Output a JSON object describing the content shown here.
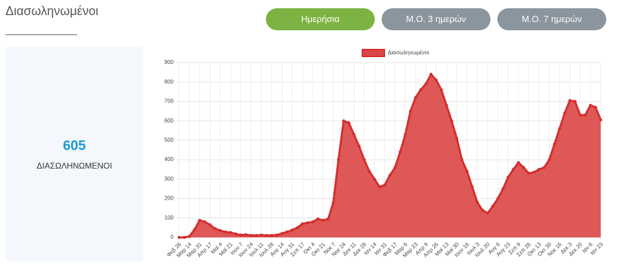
{
  "header": {
    "title": "Διασωληνωμένοι"
  },
  "buttons": [
    "Ημερήσια",
    "Μ.Ο. 3 ημερών",
    "Μ.Ο. 7 ημερών"
  ],
  "card": {
    "value": "605",
    "label": "ΔΙΑΣΩΛΗΝΩΜΕΝΟΙ"
  },
  "chart_data": {
    "type": "line",
    "area": true,
    "grid": true,
    "legend": "top",
    "categories": [
      "Φεβ 26",
      null,
      "Μαρ 14",
      null,
      "Μαρ 31",
      null,
      "Απρ 17",
      null,
      "Μαϊ 4",
      null,
      "Μαϊ 21",
      null,
      "Ιουν 7",
      null,
      "Ιουν 24",
      null,
      "Ιουλ 11",
      null,
      "Ιουλ 28",
      null,
      "Αυγ 14",
      null,
      "Αυγ 31",
      null,
      "Σεπ 17",
      null,
      "Οκτ 4",
      null,
      "Οκτ 21",
      null,
      "Νοε 7",
      null,
      "Νοε 24",
      null,
      "Δεκ 11",
      null,
      "Δεκ 28",
      null,
      "Ιαν 14",
      null,
      "Ιαν 31",
      null,
      "Φεβ 17",
      null,
      "Μαρ 6",
      null,
      "Μαρ 23",
      null,
      "Απρ 9",
      null,
      "Απρ 26",
      null,
      "Μαϊ 13",
      null,
      "Μαϊ 30",
      null,
      "Ιουν 16",
      null,
      "Ιουλ 3",
      null,
      "Ιουλ 20",
      null,
      "Αυγ 6",
      null,
      "Αυγ 23",
      null,
      "Σεπ 9",
      null,
      "Σεπ 26",
      null,
      "Οκτ 13",
      null,
      "Οκτ 30",
      null,
      "Νοε 16",
      null,
      "Δεκ 3",
      null,
      "Δεκ 20",
      null,
      "Ιαν 6",
      null,
      "Ιαν 23"
    ],
    "series": [
      {
        "name": "Διασωληνωμένοι",
        "color": "#d32f2f",
        "fill": "#dc4646",
        "values": [
          0,
          0,
          5,
          40,
          88,
          80,
          65,
          45,
          35,
          28,
          25,
          18,
          12,
          14,
          10,
          10,
          12,
          10,
          10,
          12,
          20,
          28,
          38,
          50,
          70,
          75,
          80,
          95,
          88,
          95,
          180,
          400,
          600,
          590,
          530,
          470,
          400,
          340,
          300,
          260,
          270,
          320,
          360,
          440,
          530,
          650,
          720,
          760,
          790,
          840,
          810,
          760,
          680,
          600,
          510,
          400,
          340,
          260,
          180,
          140,
          125,
          160,
          200,
          250,
          310,
          350,
          385,
          360,
          330,
          335,
          350,
          360,
          400,
          480,
          560,
          640,
          705,
          700,
          630,
          630,
          680,
          670,
          605
        ]
      }
    ],
    "ylim": [
      0,
      900
    ],
    "yticks": [
      0,
      100,
      200,
      300,
      400,
      500,
      600,
      700,
      800,
      900
    ]
  }
}
